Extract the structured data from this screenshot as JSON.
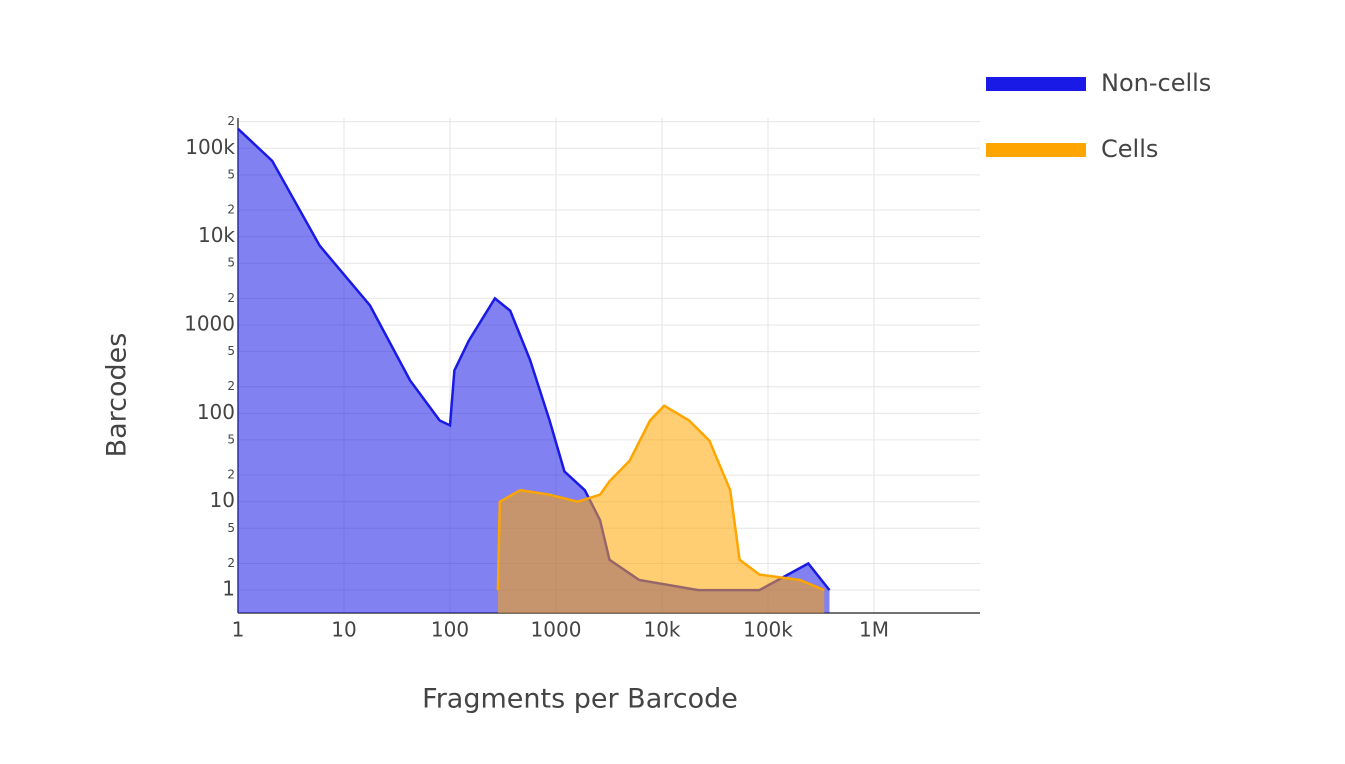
{
  "chart_data": {
    "type": "area",
    "x_label": "Fragments per Barcode",
    "y_label": "Barcodes",
    "log_x": true,
    "log_y": true,
    "grid": true,
    "legend": "top-right",
    "xlim": [
      1,
      10000000
    ],
    "xticks": [
      1,
      10,
      100,
      1000,
      {
        "value": 10000,
        "label": "10k"
      },
      {
        "value": 100000,
        "label": "100k"
      },
      {
        "value": 1000000,
        "label": "1M"
      }
    ],
    "ylim": [
      0.55,
      220000
    ],
    "yticks": [
      1,
      {
        "value": 2,
        "label": "2"
      },
      {
        "value": 5,
        "label": "5"
      },
      10,
      {
        "value": 20,
        "label": "2"
      },
      {
        "value": 50,
        "label": "5"
      },
      100,
      {
        "value": 200,
        "label": "2"
      },
      {
        "value": 500,
        "label": "5"
      },
      1000,
      {
        "value": 2000,
        "label": "2"
      },
      {
        "value": 5000,
        "label": "5"
      },
      {
        "value": 10000,
        "label": "10k"
      },
      {
        "value": 20000,
        "label": "2"
      },
      {
        "value": 50000,
        "label": "5"
      },
      {
        "value": 100000,
        "label": "100k"
      },
      {
        "value": 200000,
        "label": "2"
      }
    ],
    "series": [
      {
        "name": "Non-cells",
        "color": "#1a1ae6",
        "x": [
          1,
          2.1,
          5.9,
          17.6,
          42,
          80,
          100,
          110,
          150,
          265,
          370,
          570,
          870,
          1200,
          1870,
          2600,
          3200,
          6100,
          22000,
          83000,
          240000,
          380000
        ],
        "values": [
          166000,
          72000,
          7900,
          1660,
          235,
          83,
          73,
          306,
          660,
          2000,
          1450,
          400,
          83,
          22,
          13.5,
          6.2,
          2.2,
          1.3,
          1,
          1,
          2,
          1
        ]
      },
      {
        "name": "Cells",
        "color": "#ffa500",
        "x": [
          283,
          295,
          460,
          870,
          1600,
          2600,
          3200,
          4950,
          7700,
          10500,
          18000,
          28000,
          44000,
          54000,
          83000,
          200000,
          340000
        ],
        "values": [
          1,
          10,
          13.5,
          12,
          10,
          12,
          17,
          29,
          83,
          122,
          83,
          49,
          13.5,
          2.2,
          1.5,
          1.3,
          1
        ]
      }
    ]
  }
}
